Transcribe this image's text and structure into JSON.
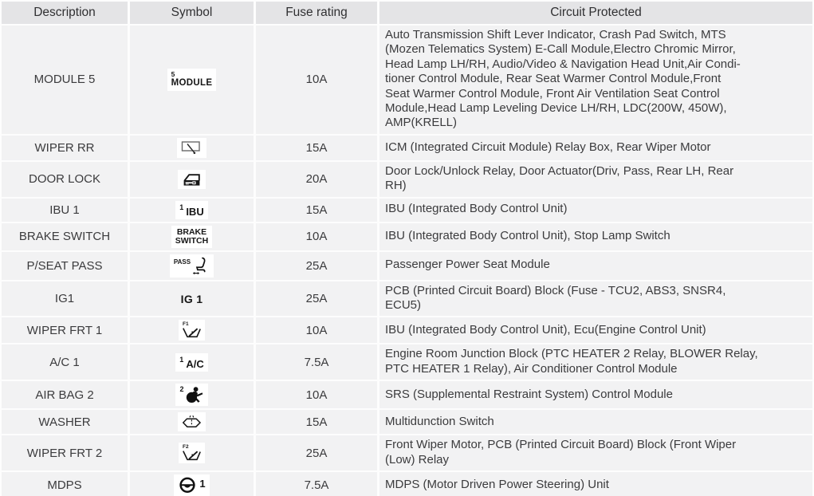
{
  "colors": {
    "header_bg": "#e4e4e6",
    "row_bg": "#f2f2f3",
    "header_text": "#303032",
    "text": "#3b3b3d",
    "symbol_ink": "#161616"
  },
  "table": {
    "headers": [
      "Description",
      "Symbol",
      "Fuse rating",
      "Circuit Protected"
    ],
    "rows": [
      {
        "description": "MODULE 5",
        "symbol": {
          "variant": "module",
          "sup": "5",
          "label": "MODULE"
        },
        "fuse_rating": "10A",
        "circuit_protected": "Auto Transmission Shift Lever Indicator, Crash Pad Switch, MTS\n(Mozen Telematics System) E-Call Module,Electro Chromic Mirror,\nHead Lamp LH/RH, Audio/Video & Navigation Head Unit,Air Condi-\ntioner Control Module, Rear Seat Warmer Control Module,Front\nSeat Warmer Control Module, Front Air Ventilation Seat Control\nModule,Head Lamp Leveling Device LH/RH, LDC(200W, 450W),\nAMP(KRELL)"
      },
      {
        "description": "WIPER RR",
        "symbol": {
          "variant": "icon",
          "icon": "rear-wiper-icon"
        },
        "fuse_rating": "15A",
        "circuit_protected": "ICM (Integrated Circuit Module) Relay Box, Rear Wiper Motor"
      },
      {
        "description": "DOOR LOCK",
        "symbol": {
          "variant": "icon",
          "icon": "door-lock-icon"
        },
        "fuse_rating": "20A",
        "circuit_protected": "Door Lock/Unlock Relay, Door Actuator(Driv, Pass, Rear LH, Rear\nRH)"
      },
      {
        "description": "IBU 1",
        "symbol": {
          "variant": "inline-sup",
          "sup": "1",
          "label": "IBU"
        },
        "fuse_rating": "15A",
        "circuit_protected": "IBU (Integrated Body Control Unit)"
      },
      {
        "description": "BRAKE SWITCH",
        "symbol": {
          "variant": "two-line",
          "label": "BRAKE\nSWITCH"
        },
        "fuse_rating": "10A",
        "circuit_protected": "IBU (Integrated Body Control Unit), Stop Lamp Switch"
      },
      {
        "description": "P/SEAT PASS",
        "symbol": {
          "variant": "pass",
          "sup": "PASS",
          "icon": "power-seat-icon"
        },
        "fuse_rating": "25A",
        "circuit_protected": "Passenger Power Seat Module"
      },
      {
        "description": "IG1",
        "symbol": {
          "variant": "plain",
          "label": "IG 1"
        },
        "fuse_rating": "25A",
        "circuit_protected": "PCB (Printed Circuit Board) Block (Fuse - TCU2, ABS3, SNSR4,\nECU5)"
      },
      {
        "description": "WIPER FRT 1",
        "symbol": {
          "variant": "stack-icon",
          "sup": "F1",
          "icon": "front-wiper-icon"
        },
        "fuse_rating": "10A",
        "circuit_protected": "IBU (Integrated Body Control Unit), Ecu(Engine Control Unit)"
      },
      {
        "description": "A/C 1",
        "symbol": {
          "variant": "inline-sup",
          "sup": "1",
          "label": "A/C"
        },
        "fuse_rating": "7.5A",
        "circuit_protected": "Engine Room Junction Block (PTC HEATER 2 Relay, BLOWER Relay,\nPTC HEATER 1 Relay), Air Conditioner Control Module"
      },
      {
        "description": "AIR BAG 2",
        "symbol": {
          "variant": "inline-icon",
          "sup": "2",
          "icon": "airbag-icon"
        },
        "fuse_rating": "10A",
        "circuit_protected": "SRS (Supplemental Restraint System) Control Module"
      },
      {
        "description": "WASHER",
        "symbol": {
          "variant": "icon",
          "icon": "washer-icon"
        },
        "fuse_rating": "15A",
        "circuit_protected": "Multidunction Switch"
      },
      {
        "description": "WIPER FRT 2",
        "symbol": {
          "variant": "stack-icon",
          "sup": "F2",
          "icon": "front-wiper-icon"
        },
        "fuse_rating": "25A",
        "circuit_protected": "Front Wiper Motor, PCB (Printed Circuit Board) Block (Front Wiper\n(Low) Relay"
      },
      {
        "description": "MDPS",
        "symbol": {
          "variant": "icon-suffix",
          "icon": "steering-wheel-icon",
          "suffix": "1"
        },
        "fuse_rating": "7.5A",
        "circuit_protected": "MDPS (Motor Driven Power Steering) Unit"
      }
    ]
  }
}
